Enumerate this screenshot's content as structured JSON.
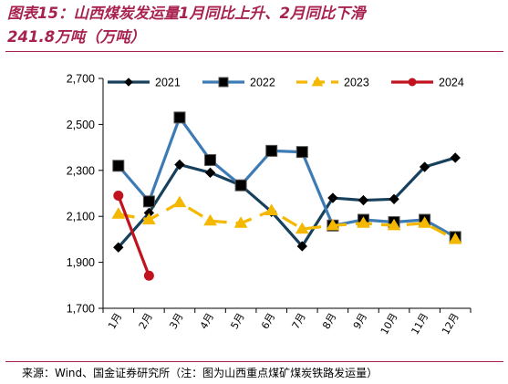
{
  "title_line1": "图表15：山西煤炭发运量1月同比上升、2月同比下滑",
  "title_line2": "241.8万吨（万吨）",
  "source": "来源：Wind、国金证券研究所（注：图为山西重点煤矿煤炭铁路发运量）",
  "chart_data": {
    "type": "line",
    "categories": [
      "1月",
      "2月",
      "3月",
      "4月",
      "5月",
      "6月",
      "7月",
      "8月",
      "9月",
      "10月",
      "11月",
      "12月"
    ],
    "ylim": [
      1700,
      2700
    ],
    "yticks": [
      1700,
      1900,
      2100,
      2300,
      2500,
      2700
    ],
    "ytick_labels": [
      "1,700",
      "1,900",
      "2,100",
      "2,300",
      "2,500",
      "2,700"
    ],
    "legend_position": "top",
    "series": [
      {
        "name": "2021",
        "color": "#17405c",
        "marker": "diamond",
        "dash": false,
        "values": [
          1965,
          2115,
          2325,
          2290,
          2235,
          2120,
          1970,
          2180,
          2170,
          2175,
          2315,
          2355
        ]
      },
      {
        "name": "2022",
        "color": "#3e7bb5",
        "marker": "square",
        "dash": false,
        "values": [
          2320,
          2165,
          2530,
          2345,
          2235,
          2385,
          2380,
          2060,
          2085,
          2075,
          2085,
          2010
        ]
      },
      {
        "name": "2023",
        "color": "#f5b800",
        "marker": "triangle",
        "dash": true,
        "values": [
          2110,
          2085,
          2160,
          2080,
          2070,
          2125,
          2045,
          2060,
          2070,
          2060,
          2070,
          2000
        ]
      },
      {
        "name": "2024",
        "color": "#c1121f",
        "marker": "circle",
        "dash": false,
        "values": [
          2190,
          1841.8,
          null,
          null,
          null,
          null,
          null,
          null,
          null,
          null,
          null,
          null
        ]
      }
    ]
  }
}
